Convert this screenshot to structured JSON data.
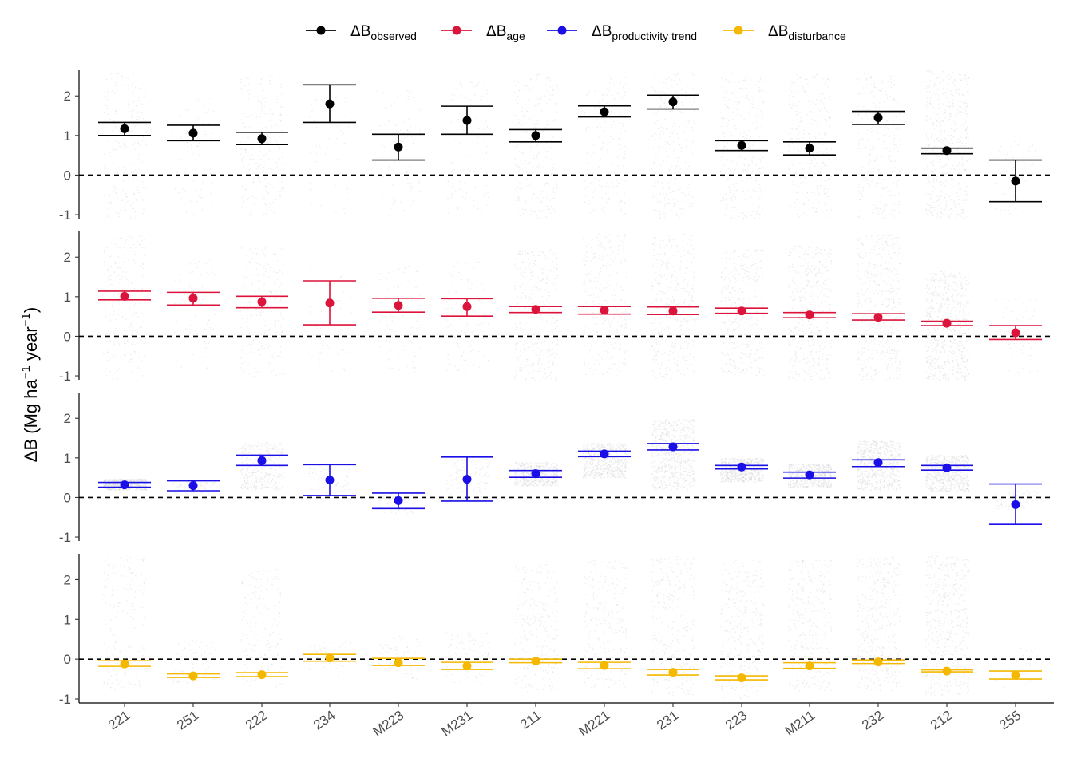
{
  "chart_data": {
    "type": "scatter",
    "ylabel": {
      "prefix": "ΔB (Mg ha",
      "sup1": "−1",
      "middle": " year",
      "sup2": "−1",
      "suffix": ")"
    },
    "categories": [
      "221",
      "251",
      "222",
      "234",
      "M223",
      "M231",
      "211",
      "M221",
      "231",
      "223",
      "M211",
      "232",
      "212",
      "255"
    ],
    "ylim": [
      -1.1,
      2.65
    ],
    "yticks": [
      "2",
      "1",
      "0",
      "-1"
    ],
    "ytick_values": [
      2,
      1,
      0,
      -1
    ],
    "reference_line": 0,
    "legend_position": "top",
    "background_cloud_color": "#cccccc",
    "series": [
      {
        "key": "observed",
        "legend_base": "ΔB",
        "legend_sub": "observed",
        "color": "#000000",
        "mean": [
          1.17,
          1.06,
          0.92,
          1.8,
          0.71,
          1.38,
          1.0,
          1.6,
          1.85,
          0.75,
          0.68,
          1.45,
          0.62,
          -0.15
        ],
        "lower": [
          1.0,
          0.87,
          0.77,
          1.33,
          0.38,
          1.03,
          0.84,
          1.47,
          1.67,
          0.62,
          0.51,
          1.28,
          0.54,
          -0.67
        ],
        "upper": [
          1.33,
          1.26,
          1.08,
          2.28,
          1.03,
          1.74,
          1.15,
          1.75,
          2.02,
          0.87,
          0.84,
          1.61,
          0.68,
          0.38
        ],
        "cloud_low": [
          -1.1,
          -1.0,
          -1.1,
          -1.0,
          -1.0,
          -1.0,
          -1.1,
          -1.0,
          -1.1,
          -1.1,
          -1.1,
          -1.1,
          -1.1,
          -1.0
        ],
        "cloud_high": [
          2.6,
          2.0,
          2.6,
          2.0,
          2.2,
          2.4,
          2.6,
          2.5,
          2.6,
          2.6,
          2.6,
          2.6,
          2.65,
          0.9
        ],
        "cloud_density": [
          0.35,
          0.12,
          0.35,
          0.1,
          0.15,
          0.18,
          0.4,
          0.3,
          0.4,
          0.45,
          0.45,
          0.45,
          0.75,
          0.08
        ]
      },
      {
        "key": "age",
        "legend_base": "ΔB",
        "legend_sub": "age",
        "color": "#dc143c",
        "mean": [
          1.01,
          0.96,
          0.87,
          0.84,
          0.78,
          0.75,
          0.68,
          0.66,
          0.64,
          0.64,
          0.54,
          0.48,
          0.33,
          0.09
        ],
        "lower": [
          0.92,
          0.79,
          0.72,
          0.29,
          0.61,
          0.51,
          0.6,
          0.56,
          0.55,
          0.58,
          0.47,
          0.41,
          0.27,
          -0.08
        ],
        "upper": [
          1.14,
          1.11,
          1.01,
          1.4,
          0.96,
          0.95,
          0.75,
          0.75,
          0.74,
          0.71,
          0.6,
          0.57,
          0.38,
          0.27
        ],
        "cloud_low": [
          -1.1,
          -0.9,
          -1.0,
          -0.9,
          -0.9,
          -0.9,
          -1.1,
          -1.0,
          -1.1,
          -1.0,
          -1.1,
          -1.1,
          -1.1,
          -1.0
        ],
        "cloud_high": [
          2.6,
          2.0,
          2.3,
          1.8,
          1.8,
          1.9,
          2.2,
          2.6,
          2.6,
          2.2,
          2.3,
          2.6,
          1.65,
          1.0
        ],
        "cloud_density": [
          0.35,
          0.12,
          0.35,
          0.1,
          0.15,
          0.18,
          0.55,
          0.45,
          0.6,
          0.65,
          0.7,
          0.75,
          1.0,
          0.08
        ]
      },
      {
        "key": "productivity",
        "legend_base": "ΔB",
        "legend_sub": "productivity trend",
        "color": "#1a0fe6",
        "mean": [
          0.32,
          0.3,
          0.93,
          0.44,
          -0.08,
          0.46,
          0.6,
          1.1,
          1.28,
          0.77,
          0.57,
          0.88,
          0.75,
          -0.18
        ],
        "lower": [
          0.26,
          0.17,
          0.81,
          0.05,
          -0.28,
          -0.09,
          0.51,
          1.03,
          1.2,
          0.72,
          0.49,
          0.78,
          0.69,
          -0.68
        ],
        "upper": [
          0.38,
          0.42,
          1.07,
          0.83,
          0.11,
          1.02,
          0.68,
          1.17,
          1.36,
          0.81,
          0.64,
          0.95,
          0.81,
          0.34
        ],
        "cloud_low": [
          0.2,
          0.1,
          0.2,
          0.0,
          -0.4,
          0.0,
          0.3,
          0.5,
          0.2,
          0.4,
          0.25,
          0.2,
          0.15,
          -0.3
        ],
        "cloud_high": [
          0.48,
          0.45,
          1.4,
          0.85,
          0.15,
          1.0,
          0.9,
          1.38,
          1.98,
          1.0,
          0.85,
          1.45,
          1.08,
          0.2
        ],
        "cloud_density": [
          0.9,
          0.15,
          0.55,
          0.1,
          0.12,
          0.18,
          0.75,
          0.9,
          1.0,
          0.95,
          0.85,
          0.95,
          1.0,
          0.1
        ]
      },
      {
        "key": "disturbance",
        "legend_base": "ΔB",
        "legend_sub": "disturbance",
        "color": "#f5b800",
        "mean": [
          -0.12,
          -0.42,
          -0.39,
          0.03,
          -0.09,
          -0.17,
          -0.05,
          -0.16,
          -0.33,
          -0.47,
          -0.17,
          -0.07,
          -0.3,
          -0.4
        ],
        "lower": [
          -0.18,
          -0.46,
          -0.44,
          -0.05,
          -0.16,
          -0.26,
          -0.09,
          -0.24,
          -0.4,
          -0.52,
          -0.23,
          -0.11,
          -0.32,
          -0.5
        ],
        "upper": [
          -0.04,
          -0.37,
          -0.34,
          0.12,
          0.02,
          -0.08,
          0.0,
          -0.08,
          -0.26,
          -0.42,
          -0.09,
          -0.02,
          -0.27,
          -0.3
        ],
        "cloud_low": [
          -0.8,
          -0.6,
          -0.7,
          -0.4,
          -0.5,
          -0.6,
          -0.8,
          -0.7,
          -0.9,
          -1.0,
          -0.8,
          -0.8,
          -0.9,
          -0.7
        ],
        "cloud_high": [
          2.6,
          0.5,
          2.3,
          0.5,
          0.6,
          0.7,
          2.4,
          2.5,
          2.6,
          2.5,
          2.5,
          2.6,
          2.6,
          0.3
        ],
        "cloud_density": [
          0.3,
          0.1,
          0.3,
          0.08,
          0.12,
          0.15,
          0.45,
          0.4,
          0.55,
          0.6,
          0.6,
          0.65,
          0.8,
          0.06
        ]
      }
    ]
  }
}
